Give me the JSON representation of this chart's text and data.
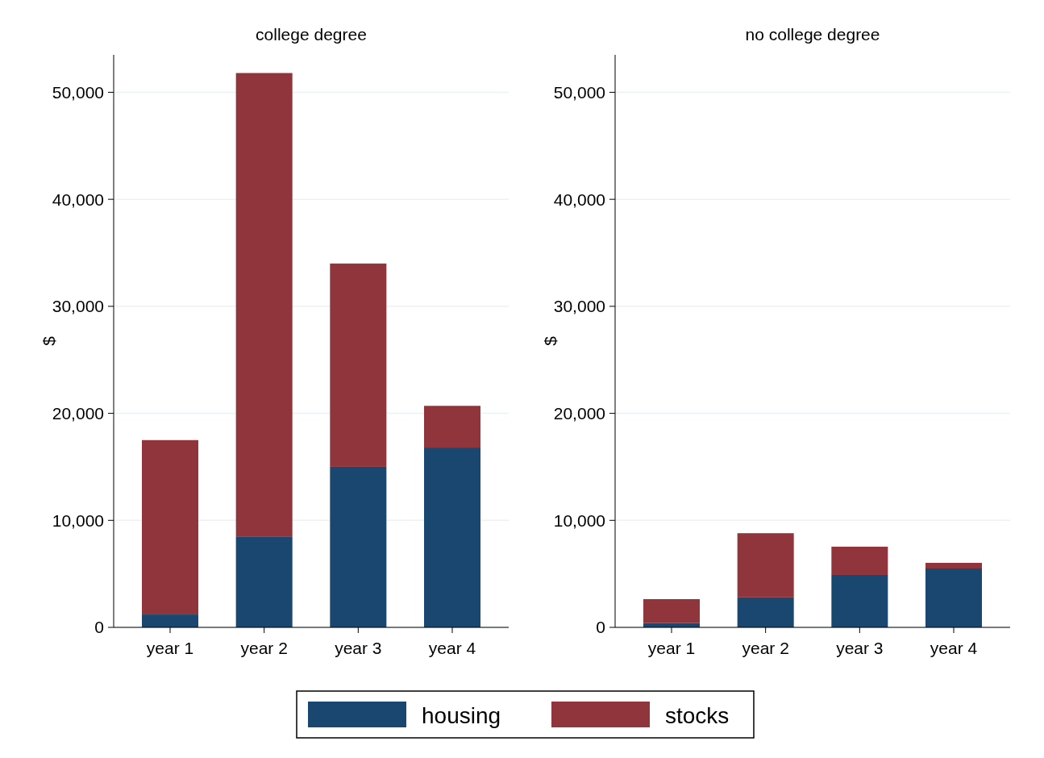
{
  "chart_data": [
    {
      "type": "bar",
      "title": "college degree",
      "ylabel": "$",
      "categories": [
        "year 1",
        "year 2",
        "year 3",
        "year 4"
      ],
      "stacked": true,
      "ylim": [
        0,
        53500
      ],
      "yticks": [
        0,
        {
          "value": 10000,
          "label": "10,000"
        },
        {
          "value": 20000,
          "label": "20,000"
        },
        {
          "value": 30000,
          "label": "30,000"
        },
        {
          "value": 40000,
          "label": "40,000"
        },
        {
          "value": 50000,
          "label": "50,000"
        }
      ],
      "grid": "y",
      "legend": "bottom",
      "series": [
        {
          "name": "housing",
          "color": "#1a476f",
          "values": [
            1200,
            8500,
            15000,
            16800
          ]
        },
        {
          "name": "stocks",
          "color": "#90353b",
          "values": [
            16300,
            43300,
            19000,
            3900
          ]
        }
      ]
    },
    {
      "type": "bar",
      "title": "no college degree",
      "ylabel": "$",
      "categories": [
        "year 1",
        "year 2",
        "year 3",
        "year 4"
      ],
      "stacked": true,
      "ylim": [
        0,
        53500
      ],
      "yticks": [
        0,
        {
          "value": 10000,
          "label": "10,000"
        },
        {
          "value": 20000,
          "label": "20,000"
        },
        {
          "value": 30000,
          "label": "30,000"
        },
        {
          "value": 40000,
          "label": "40,000"
        },
        {
          "value": 50000,
          "label": "50,000"
        }
      ],
      "grid": "y",
      "legend": "bottom",
      "series": [
        {
          "name": "housing",
          "color": "#1a476f",
          "values": [
            400,
            2800,
            4900,
            5500
          ]
        },
        {
          "name": "stocks",
          "color": "#90353b",
          "values": [
            2240,
            6000,
            2640,
            530
          ]
        }
      ]
    }
  ]
}
